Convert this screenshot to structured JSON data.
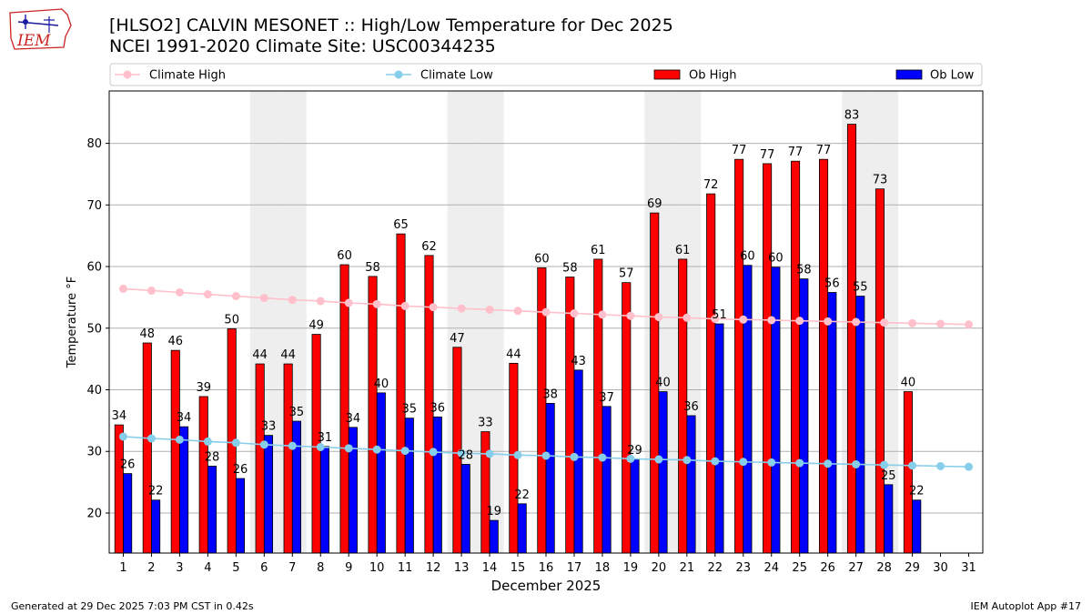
{
  "header": {
    "title": "[HLSO2] CALVIN MESONET :: High/Low Temperature for Dec 2025",
    "subtitle": "NCEI 1991-2020 Climate Site: USC00344235",
    "logo_text": "IEM"
  },
  "footer": {
    "generated": "Generated at 29 Dec 2025 7:03 PM CST in 0.42s",
    "app": "IEM Autoplot App #17"
  },
  "colors": {
    "ob_high": "#ff0000",
    "ob_low": "#0000ff",
    "climate_high": "#ffc0cb",
    "climate_low": "#87ceeb",
    "weekend_shade": "#eeeeee",
    "grid": "#b0b0b0",
    "logo": "#cc2222"
  },
  "chart_data": {
    "type": "bar",
    "xlabel": "December 2025",
    "ylabel": "Temperature °F",
    "ylim": [
      13.5,
      88.5
    ],
    "y_ticks": [
      20,
      30,
      40,
      50,
      60,
      70,
      80
    ],
    "grid": "horizontal",
    "legend_position": "top",
    "categories": [
      1,
      2,
      3,
      4,
      5,
      6,
      7,
      8,
      9,
      10,
      11,
      12,
      13,
      14,
      15,
      16,
      17,
      18,
      19,
      20,
      21,
      22,
      23,
      24,
      25,
      26,
      27,
      28,
      29,
      30,
      31
    ],
    "shaded_days": [
      6,
      7,
      13,
      14,
      20,
      21,
      27,
      28
    ],
    "series": [
      {
        "name": "Ob High",
        "kind": "bar",
        "values": [
          34.3,
          47.6,
          46.4,
          38.9,
          49.9,
          44.2,
          44.2,
          49.0,
          60.3,
          58.4,
          65.3,
          61.8,
          46.9,
          33.2,
          44.3,
          59.8,
          58.3,
          61.2,
          57.4,
          68.7,
          61.2,
          71.8,
          77.4,
          76.7,
          77.1,
          77.4,
          83.1,
          72.6,
          39.7,
          null,
          null
        ],
        "labels": [
          "34",
          "48",
          "46",
          "39",
          "50",
          "44",
          "44",
          "49",
          "60",
          "58",
          "65",
          "62",
          "47",
          "33",
          "44",
          "60",
          "58",
          "61",
          "57",
          "69",
          "61",
          "72",
          "77",
          "77",
          "77",
          "77",
          "83",
          "73",
          "40",
          "",
          ""
        ]
      },
      {
        "name": "Ob Low",
        "kind": "bar",
        "values": [
          26.4,
          22.1,
          34.0,
          27.6,
          25.6,
          32.6,
          34.9,
          30.8,
          33.9,
          39.5,
          35.4,
          35.6,
          27.9,
          18.8,
          21.5,
          37.8,
          43.2,
          37.3,
          28.7,
          39.7,
          35.8,
          50.7,
          60.2,
          59.9,
          58.0,
          55.8,
          55.2,
          24.6,
          22.1,
          null,
          null
        ],
        "labels": [
          "26",
          "22",
          "34",
          "28",
          "26",
          "33",
          "35",
          "31",
          "34",
          "40",
          "35",
          "36",
          "28",
          "19",
          "22",
          "38",
          "43",
          "37",
          "29",
          "40",
          "36",
          "51",
          "60",
          "60",
          "58",
          "56",
          "55",
          "25",
          "22",
          "",
          ""
        ]
      },
      {
        "name": "Climate High",
        "kind": "line",
        "values": [
          56.4,
          56.1,
          55.8,
          55.5,
          55.2,
          54.9,
          54.6,
          54.4,
          54.1,
          53.9,
          53.6,
          53.4,
          53.2,
          53.0,
          52.8,
          52.6,
          52.4,
          52.2,
          52.0,
          51.8,
          51.7,
          51.5,
          51.4,
          51.3,
          51.2,
          51.1,
          51.0,
          50.9,
          50.8,
          50.7,
          50.6
        ]
      },
      {
        "name": "Climate Low",
        "kind": "line",
        "values": [
          32.4,
          32.1,
          31.9,
          31.6,
          31.4,
          31.1,
          30.9,
          30.7,
          30.5,
          30.3,
          30.1,
          29.9,
          29.7,
          29.6,
          29.4,
          29.3,
          29.1,
          29.0,
          28.8,
          28.7,
          28.6,
          28.4,
          28.3,
          28.2,
          28.1,
          28.0,
          27.9,
          27.8,
          27.7,
          27.6,
          27.5
        ]
      }
    ]
  }
}
